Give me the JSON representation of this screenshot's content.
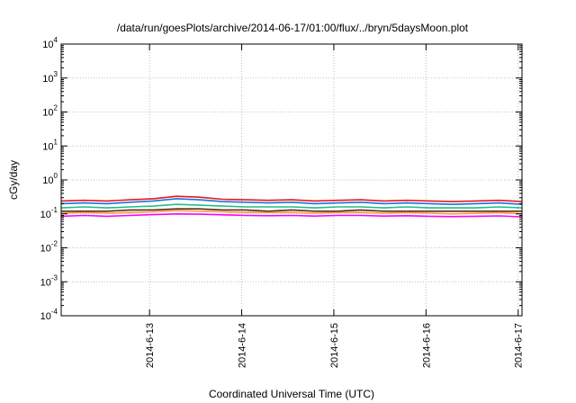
{
  "chart_data": {
    "type": "line",
    "title": "/data/run/goesPlots/archive/2014-06-17/01:00/flux/../bryn/5daysMoon.plot",
    "xlabel": "Coordinated Universal Time (UTC)",
    "ylabel": "cGy/day",
    "yscale": "log",
    "ylim": [
      0.0001,
      10000
    ],
    "xlim": [
      "2014-06-12T01:00",
      "2014-06-17T01:00"
    ],
    "grid": true,
    "y_ticks": [
      {
        "base": "10",
        "exp": "-4",
        "value": 0.0001
      },
      {
        "base": "10",
        "exp": "-3",
        "value": 0.001
      },
      {
        "base": "10",
        "exp": "-2",
        "value": 0.01
      },
      {
        "base": "10",
        "exp": "-1",
        "value": 0.1
      },
      {
        "base": "10",
        "exp": "0",
        "value": 1
      },
      {
        "base": "10",
        "exp": "1",
        "value": 10
      },
      {
        "base": "10",
        "exp": "2",
        "value": 100
      },
      {
        "base": "10",
        "exp": "3",
        "value": 1000
      },
      {
        "base": "10",
        "exp": "4",
        "value": 10000
      }
    ],
    "x_ticks": [
      {
        "label": "2014-6-13",
        "value": "2014-06-13T00:00"
      },
      {
        "label": "2014-6-14",
        "value": "2014-06-14T00:00"
      },
      {
        "label": "2014-6-15",
        "value": "2014-06-15T00:00"
      },
      {
        "label": "2014-6-16",
        "value": "2014-06-16T00:00"
      },
      {
        "label": "2014-6-17",
        "value": "2014-06-17T00:00"
      }
    ],
    "x": [
      "2014-06-12T01:00",
      "2014-06-12T07:00",
      "2014-06-12T13:00",
      "2014-06-12T19:00",
      "2014-06-13T01:00",
      "2014-06-13T07:00",
      "2014-06-13T13:00",
      "2014-06-13T19:00",
      "2014-06-14T01:00",
      "2014-06-14T07:00",
      "2014-06-14T13:00",
      "2014-06-14T19:00",
      "2014-06-15T01:00",
      "2014-06-15T07:00",
      "2014-06-15T13:00",
      "2014-06-15T19:00",
      "2014-06-16T01:00",
      "2014-06-16T07:00",
      "2014-06-16T13:00",
      "2014-06-16T19:00",
      "2014-06-17T01:00"
    ],
    "series": [
      {
        "color": "#e41a1c",
        "values": [
          0.24,
          0.25,
          0.24,
          0.26,
          0.28,
          0.33,
          0.31,
          0.27,
          0.26,
          0.25,
          0.26,
          0.24,
          0.25,
          0.26,
          0.24,
          0.25,
          0.24,
          0.23,
          0.24,
          0.25,
          0.23
        ]
      },
      {
        "color": "#1f6fe0",
        "values": [
          0.2,
          0.21,
          0.2,
          0.22,
          0.24,
          0.28,
          0.26,
          0.23,
          0.22,
          0.21,
          0.22,
          0.2,
          0.21,
          0.22,
          0.2,
          0.21,
          0.2,
          0.19,
          0.2,
          0.21,
          0.19
        ]
      },
      {
        "color": "#20c080",
        "values": [
          0.15,
          0.16,
          0.15,
          0.16,
          0.17,
          0.19,
          0.18,
          0.17,
          0.16,
          0.16,
          0.16,
          0.15,
          0.16,
          0.16,
          0.15,
          0.16,
          0.15,
          0.15,
          0.15,
          0.16,
          0.15
        ]
      },
      {
        "color": "#5a2a18",
        "values": [
          0.12,
          0.12,
          0.12,
          0.13,
          0.13,
          0.14,
          0.14,
          0.13,
          0.13,
          0.12,
          0.13,
          0.12,
          0.12,
          0.13,
          0.12,
          0.12,
          0.12,
          0.12,
          0.12,
          0.12,
          0.12
        ]
      },
      {
        "color": "#ff9a40",
        "values": [
          0.105,
          0.11,
          0.105,
          0.11,
          0.115,
          0.125,
          0.12,
          0.115,
          0.11,
          0.11,
          0.11,
          0.105,
          0.11,
          0.11,
          0.105,
          0.11,
          0.105,
          0.1,
          0.105,
          0.11,
          0.1
        ]
      },
      {
        "color": "#ff00ff",
        "values": [
          0.085,
          0.09,
          0.085,
          0.09,
          0.095,
          0.1,
          0.098,
          0.094,
          0.09,
          0.088,
          0.09,
          0.086,
          0.09,
          0.09,
          0.086,
          0.088,
          0.085,
          0.083,
          0.085,
          0.087,
          0.082
        ]
      }
    ]
  }
}
